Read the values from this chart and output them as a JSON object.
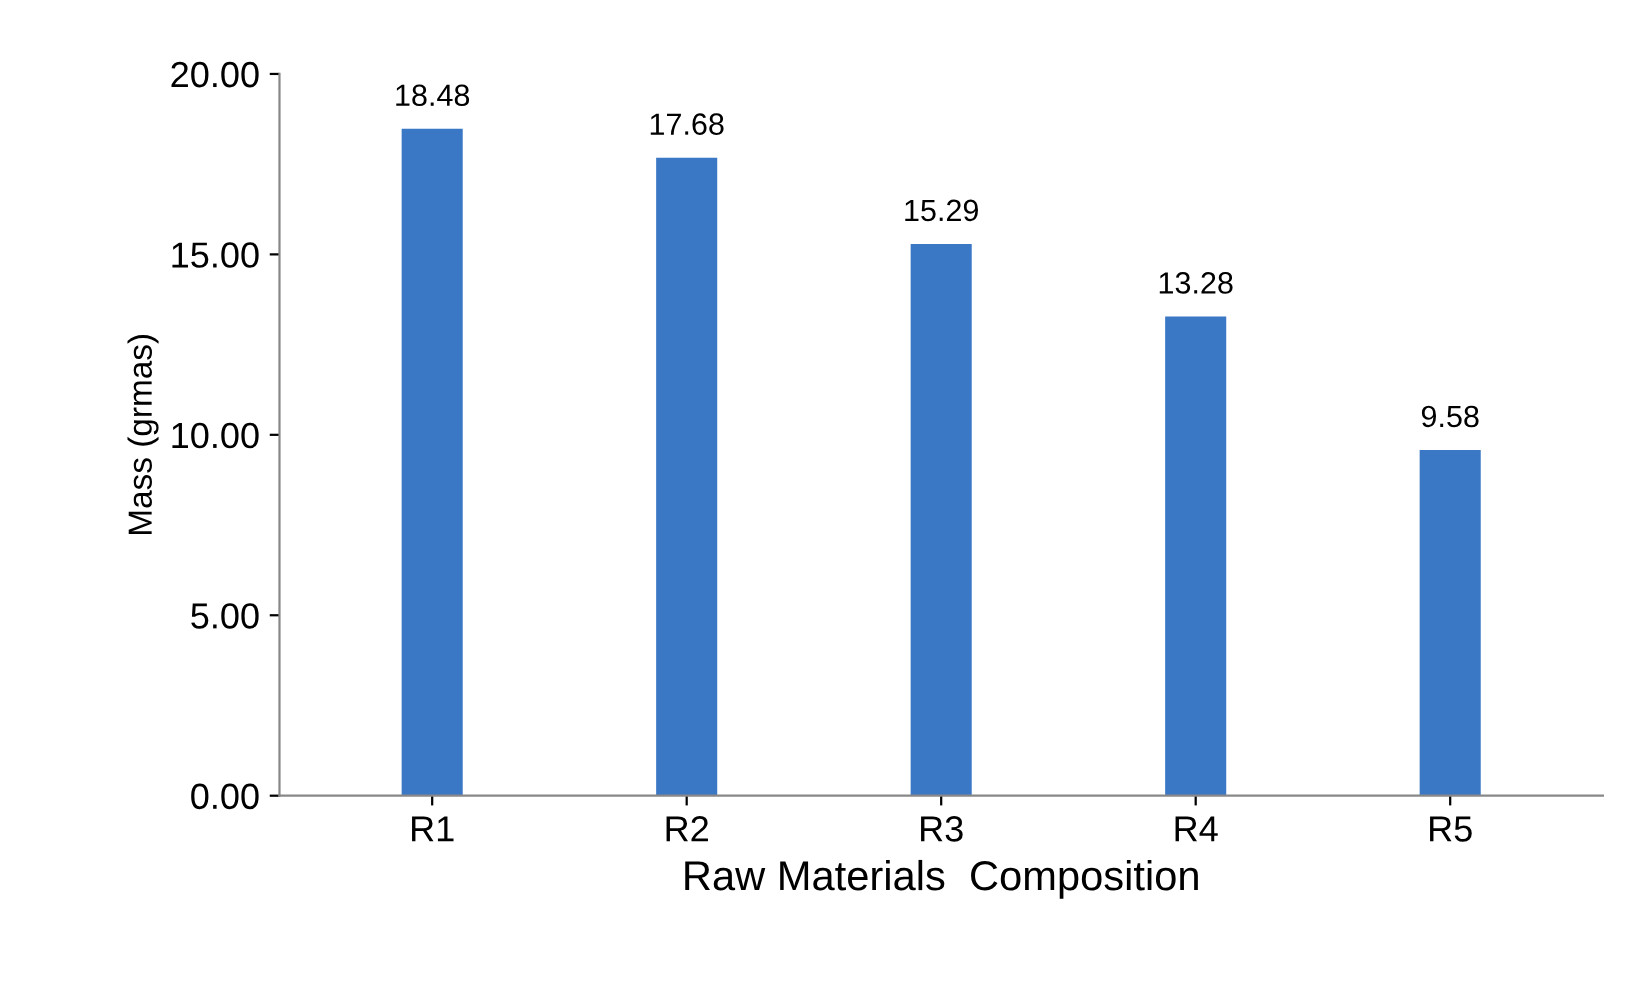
{
  "chart_data": {
    "type": "bar",
    "xlabel": "Raw Materials  Composition",
    "ylabel": "Mass (grmas)",
    "categories": [
      "R1",
      "R2",
      "R3",
      "R4",
      "R5"
    ],
    "values": [
      18.48,
      17.68,
      15.29,
      13.28,
      9.58
    ],
    "color": "#3a78c6",
    "ylim": [
      0,
      20
    ],
    "yticks": [
      {
        "value": 0,
        "label": "0.00"
      },
      {
        "value": 5,
        "label": "5.00"
      },
      {
        "value": 10,
        "label": "10.00"
      },
      {
        "value": 15,
        "label": "15.00"
      },
      {
        "value": 20,
        "label": "20.00"
      }
    ],
    "grid": false,
    "legend": false,
    "data_labels": true
  }
}
